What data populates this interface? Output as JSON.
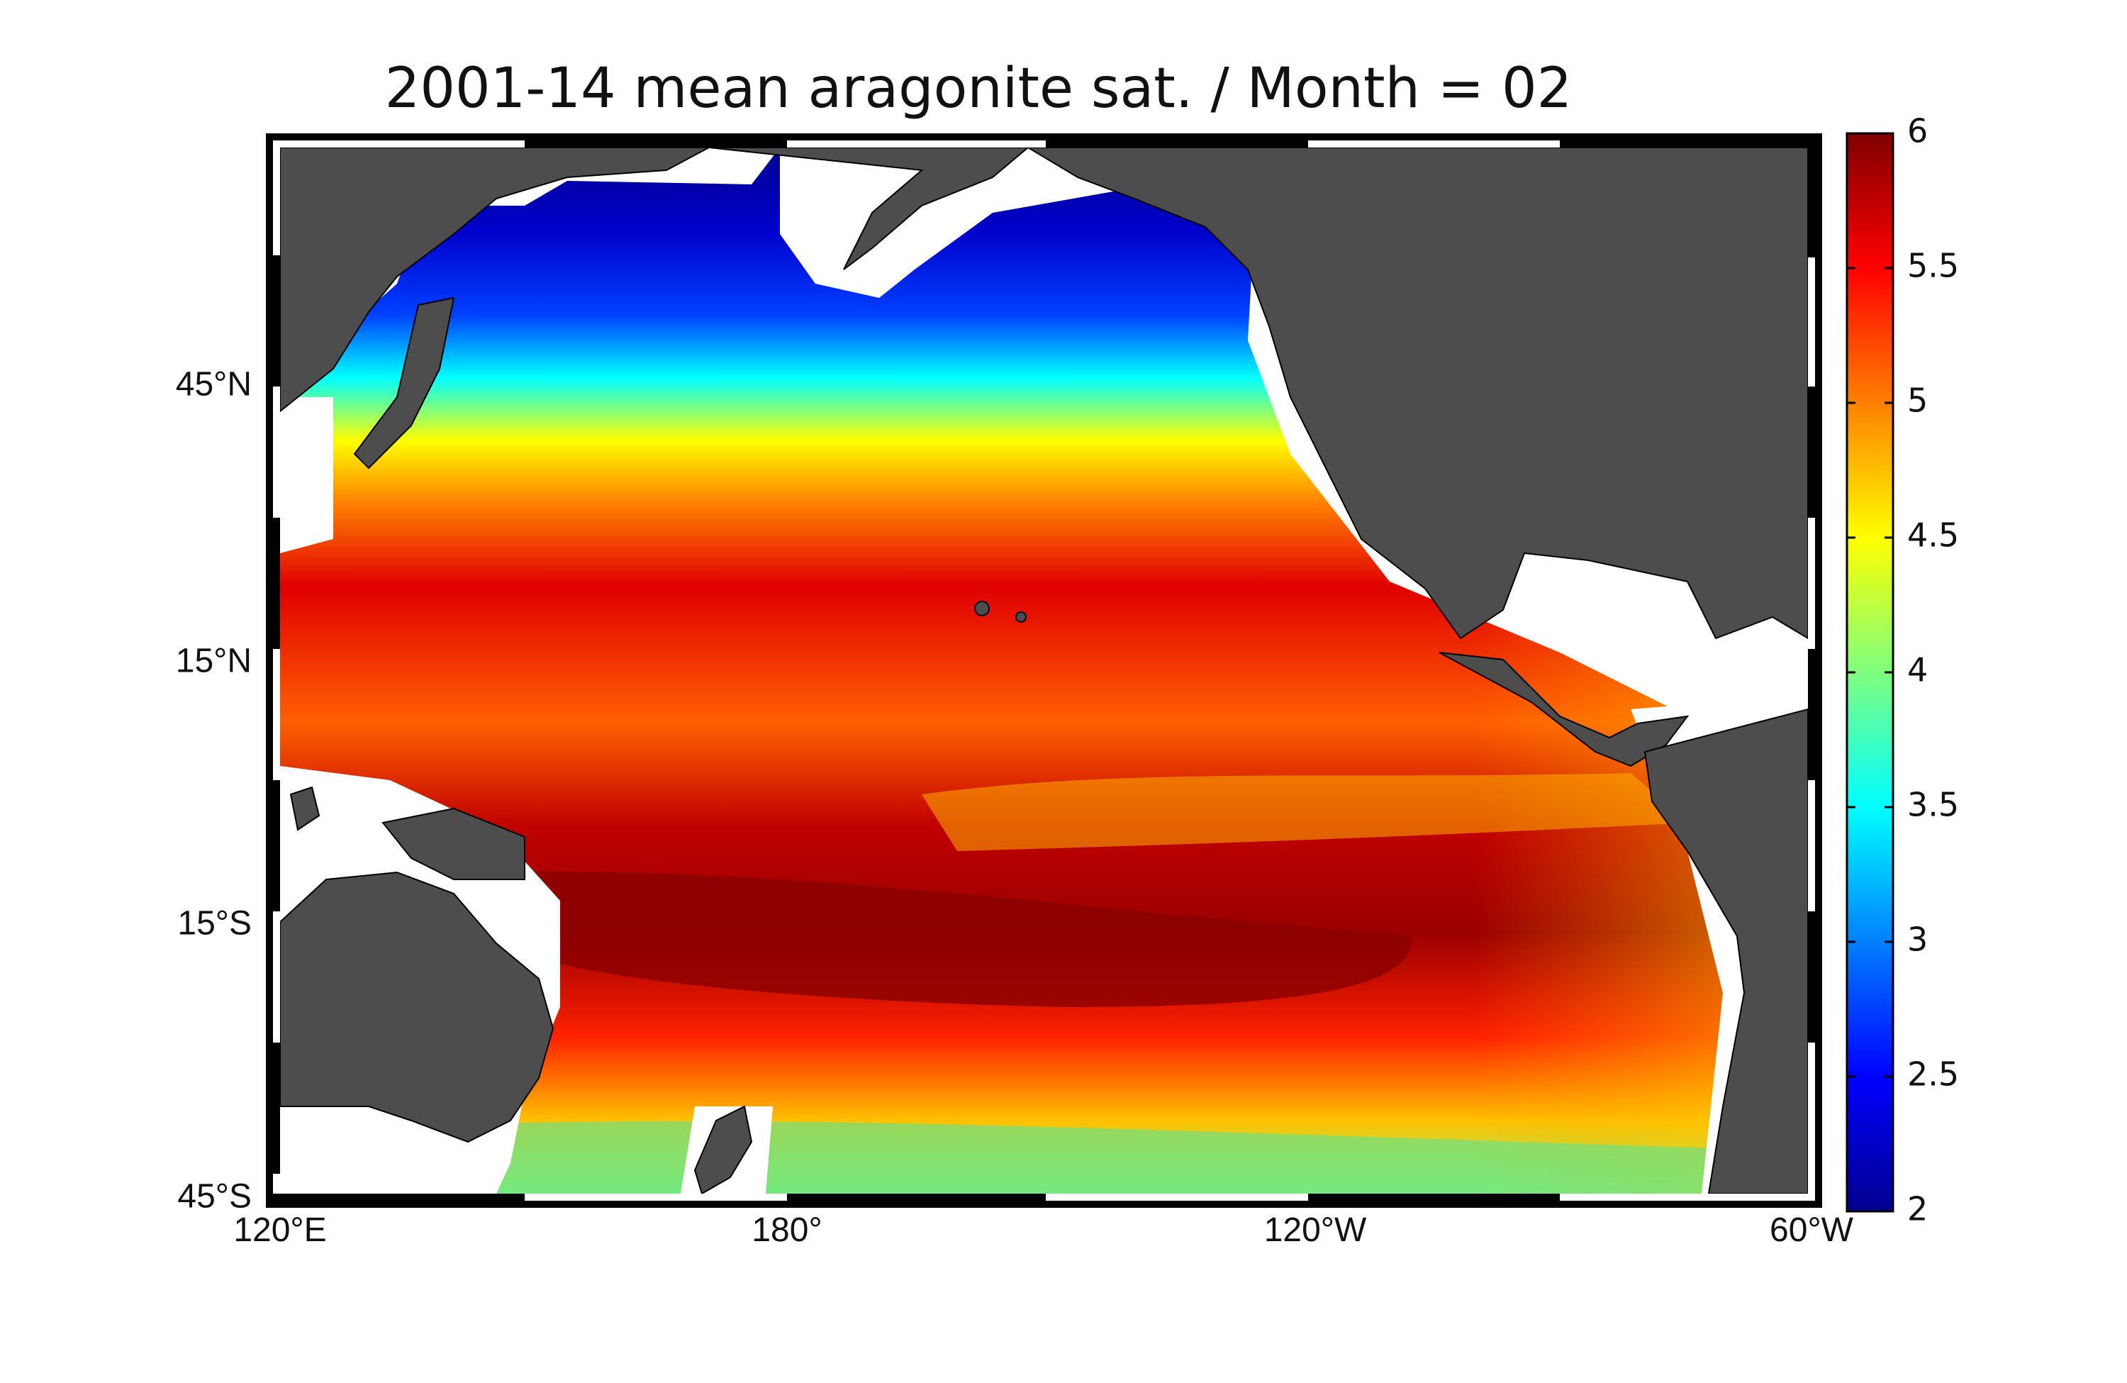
{
  "title": "2001-14 mean aragonite sat. / Month = 02",
  "map": {
    "projection": "equirectangular",
    "lon_range": [
      "120°E",
      "60°W"
    ],
    "lat_range": [
      "45°S",
      "~65°N"
    ],
    "land_color": "#4d4d4d",
    "no_data_color": "#ffffff",
    "frame_style": "alternating black/white border"
  },
  "axes": {
    "y_ticks": [
      "45°N",
      "15°N",
      "15°S",
      "45°S"
    ],
    "x_ticks": [
      "120°E",
      "180°",
      "120°W",
      "60°W"
    ]
  },
  "colorbar": {
    "colormap": "jet",
    "min": 2,
    "max": 6,
    "tick_labels": [
      "6",
      "5.5",
      "5",
      "4.5",
      "4",
      "3.5",
      "3",
      "2.5",
      "2"
    ],
    "stops": [
      "#00008f",
      "#0000ff",
      "#00ffff",
      "#ffff00",
      "#ff0000",
      "#800000"
    ]
  },
  "field_description_visible_bands": [
    {
      "region": "North Pacific subpolar",
      "approx_value": 2.2
    },
    {
      "region": "40-45°N transition",
      "approx_value": 3.5
    },
    {
      "region": "Subtropical gyres",
      "approx_value": 5.5
    },
    {
      "region": "South Pacific central",
      "approx_value": 6.0
    },
    {
      "region": "Equatorial east Pacific",
      "approx_value": 4.8
    },
    {
      "region": "Southern high latitudes",
      "approx_value": 4.2
    }
  ]
}
